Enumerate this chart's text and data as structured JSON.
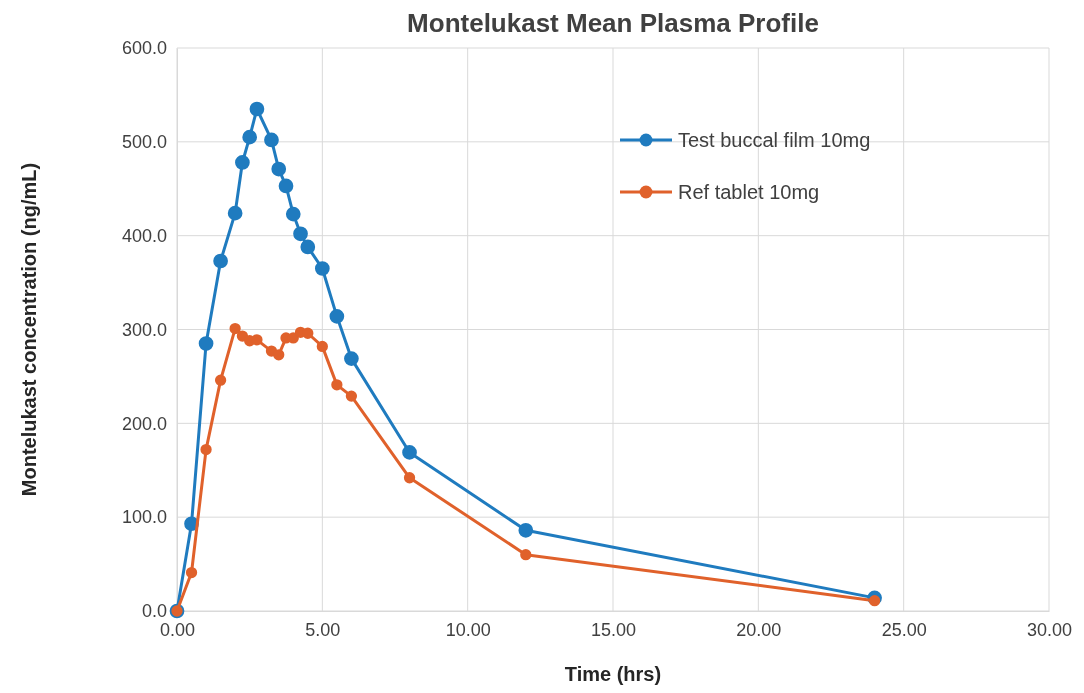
{
  "chart_data": {
    "type": "line",
    "title": "Montelukast Mean Plasma Profile",
    "xlabel": "Time (hrs)",
    "ylabel": "Montelukast concentration (ng/mL)",
    "x": [
      0,
      0.5,
      1,
      1.5,
      2,
      2.25,
      2.5,
      2.75,
      3.25,
      3.5,
      3.75,
      4,
      4.25,
      4.5,
      5,
      5.5,
      6,
      8,
      12,
      24
    ],
    "series": [
      {
        "name": "Test buccal film 10mg",
        "color": "#1f7bbf",
        "values": [
          0,
          93,
          285,
          373,
          424,
          478,
          505,
          535,
          502,
          471,
          453,
          423,
          402,
          388,
          365,
          314,
          269,
          169,
          86,
          14
        ]
      },
      {
        "name": "Ref tablet 10mg",
        "color": "#e0612b",
        "values": [
          0,
          41,
          172,
          246,
          301,
          293,
          288,
          289,
          277,
          273,
          291,
          291,
          297,
          296,
          282,
          241,
          229,
          142,
          60,
          11
        ]
      }
    ],
    "xlim": [
      0,
      30
    ],
    "xticks": [
      {
        "value": 0,
        "label": "0.00"
      },
      {
        "value": 5,
        "label": "5.00"
      },
      {
        "value": 10,
        "label": "10.00"
      },
      {
        "value": 15,
        "label": "15.00"
      },
      {
        "value": 20,
        "label": "20.00"
      },
      {
        "value": 25,
        "label": "25.00"
      },
      {
        "value": 30,
        "label": "30.00"
      }
    ],
    "ylim": [
      0,
      600
    ],
    "yticks": [
      {
        "value": 0,
        "label": "0.0"
      },
      {
        "value": 100,
        "label": "100.0"
      },
      {
        "value": 200,
        "label": "200.0"
      },
      {
        "value": 300,
        "label": "300.0"
      },
      {
        "value": 400,
        "label": "400.0"
      },
      {
        "value": 500,
        "label": "500.0"
      },
      {
        "value": 600,
        "label": "600.0"
      }
    ],
    "grid": true,
    "legend": "right",
    "marker": "circle",
    "line_style": "solid"
  }
}
